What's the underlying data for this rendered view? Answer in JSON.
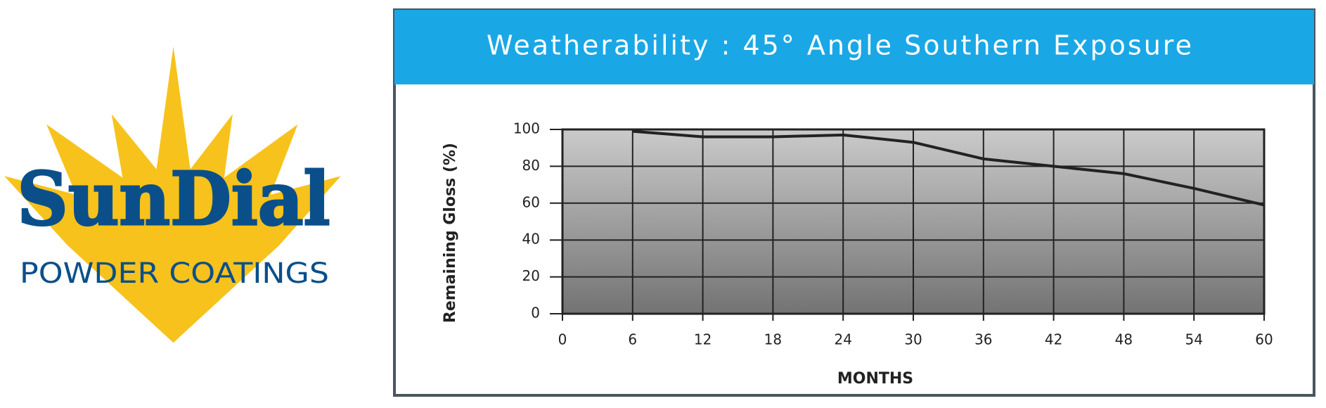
{
  "logo": {
    "name": "SunDial",
    "tagline": "POWDER COATINGS"
  },
  "chart_data": {
    "type": "line",
    "title": "Weatherability :  45° Angle Southern Exposure",
    "y_label": "Remaining Gloss (%)",
    "x_label": "MONTHS",
    "x": [
      6,
      12,
      18,
      24,
      30,
      36,
      42,
      48,
      54,
      60
    ],
    "series": [
      {
        "name": "Remaining Gloss",
        "color": "#222222",
        "values": [
          99,
          96,
          96,
          97,
          93,
          84,
          80,
          76,
          68,
          59
        ]
      }
    ],
    "xlim": [
      0,
      60
    ],
    "xticks": [
      0,
      6,
      12,
      18,
      24,
      30,
      36,
      42,
      48,
      54,
      60
    ],
    "ylim": [
      0,
      100
    ],
    "yticks": [
      0,
      20,
      40,
      60,
      80,
      100
    ],
    "grid": true
  }
}
